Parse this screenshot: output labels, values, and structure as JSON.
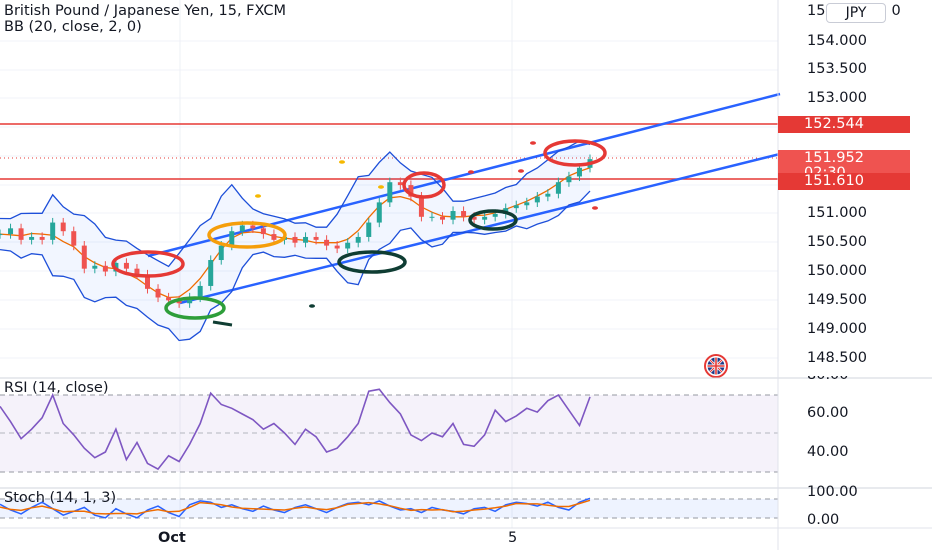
{
  "header": {
    "symbol_title": "British Pound / Japanese Yen, 15, FXCM",
    "indicator_legend": "BB (20, close, 2, 0)",
    "currency": "JPY"
  },
  "price_axis": {
    "labels": [
      "154.000",
      "153.500",
      "153.000",
      "151.000",
      "150.500",
      "150.000",
      "149.500",
      "149.000",
      "148.500"
    ],
    "top_partial_label": "15",
    "top_partial_suffix": "0"
  },
  "price_tags": {
    "resistance": "152.544",
    "last_price": "151.952",
    "countdown": "02:30",
    "support": "151.610"
  },
  "rsi_pane": {
    "title": "RSI (14, close)",
    "labels": [
      "60.00",
      "40.00"
    ],
    "top_partial": "80.00"
  },
  "stoch_pane": {
    "title": "Stoch (14, 1, 3)",
    "labels": [
      "100.00",
      "0.00"
    ]
  },
  "time_axis": {
    "labels": [
      "Oct",
      "5"
    ]
  },
  "colors": {
    "price_line": "#e53935",
    "bb_band": "#1e4fd8",
    "bb_basis": "#ef6c00",
    "channel": "#2962ff",
    "rsi_line": "#7e57c2",
    "stoch_k": "#2962ff",
    "stoch_d": "#ef6c00",
    "up_candle": "#26a69a",
    "down_candle": "#ef5350"
  },
  "chart_data": {
    "type": "line",
    "title": "British Pound / Japanese Yen, 15, FXCM",
    "ylim": [
      148.2,
      155.0
    ],
    "series": [
      {
        "name": "BB (20, close, 2, 0)",
        "values": [
          150.65,
          150.75,
          150.55,
          150.6,
          150.55,
          150.85,
          150.7,
          150.45,
          150.05,
          150.1,
          150.0,
          150.15,
          150.05,
          149.95,
          149.7,
          149.55,
          149.5,
          149.45,
          149.55,
          149.75,
          150.2,
          150.45,
          150.7,
          150.8,
          150.75,
          150.65,
          150.55,
          150.6,
          150.5,
          150.6,
          150.55,
          150.45,
          150.4,
          150.5,
          150.6,
          150.85,
          151.2,
          151.55,
          151.5,
          151.3,
          150.95,
          150.95,
          150.9,
          151.05,
          150.95,
          150.9,
          150.95,
          151.0,
          151.1,
          151.15,
          151.2,
          151.3,
          151.35,
          151.55,
          151.65,
          151.8,
          151.95
        ]
      }
    ],
    "rsi_values": [
      64,
      56,
      47,
      52,
      58,
      70,
      55,
      49,
      42,
      37,
      40,
      52,
      36,
      45,
      34,
      31,
      38,
      35,
      44,
      55,
      71,
      65,
      63,
      60,
      57,
      52,
      55,
      50,
      44,
      52,
      48,
      40,
      42,
      48,
      55,
      72,
      73,
      66,
      60,
      49,
      46,
      50,
      48,
      55,
      44,
      43,
      49,
      62,
      56,
      59,
      63,
      61,
      67,
      70,
      62,
      54,
      69
    ],
    "stoch_values": [
      72,
      50,
      35,
      60,
      80,
      55,
      30,
      45,
      60,
      30,
      20,
      55,
      35,
      20,
      50,
      65,
      40,
      25,
      70,
      85,
      80,
      60,
      70,
      55,
      45,
      65,
      50,
      40,
      60,
      70,
      55,
      40,
      60,
      75,
      80,
      70,
      85,
      65,
      50,
      55,
      40,
      60,
      50,
      45,
      35,
      55,
      60,
      45,
      70,
      80,
      75,
      65,
      80,
      60,
      50,
      80,
      95
    ]
  }
}
